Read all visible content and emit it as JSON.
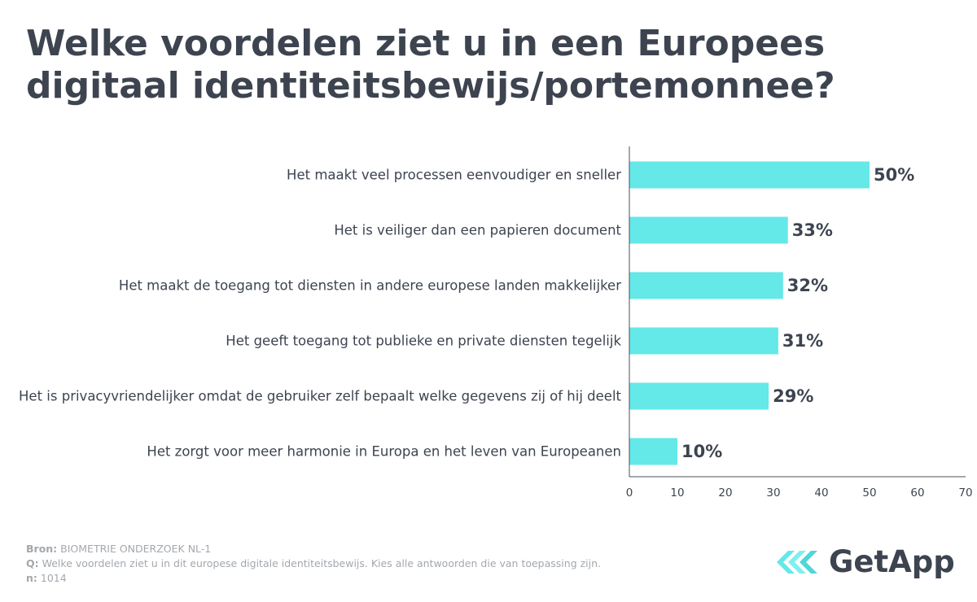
{
  "title": "Welke voordelen ziet u in een Europees digitaal identiteitsbewijs/portemonnee?",
  "colors": {
    "bar": "#64e8e8",
    "text": "#3d4450",
    "axis": "#4a4f57",
    "footer": "#a3a8ae",
    "logo_accent": "#64e8e8"
  },
  "chart_data": {
    "type": "bar",
    "orientation": "horizontal",
    "categories": [
      "Het maakt veel processen eenvoudiger en sneller",
      "Het is veiliger dan een papieren document",
      "Het maakt de toegang tot diensten in andere europese landen makkelijker",
      "Het geeft toegang tot publieke en private diensten tegelijk",
      "Het is privacyvriendelijker omdat de gebruiker zelf bepaalt welke gegevens zij of hij deelt",
      "Het zorgt voor meer harmonie in Europa en het leven van Europeanen"
    ],
    "values": [
      50,
      33,
      32,
      31,
      29,
      10
    ],
    "value_labels": [
      "50%",
      "33%",
      "32%",
      "31%",
      "29%",
      "10%"
    ],
    "xlim": [
      0,
      70
    ],
    "xticks": [
      "0",
      "10",
      "20",
      "30",
      "40",
      "50",
      "60",
      "70"
    ],
    "grid": false,
    "legend": "none"
  },
  "footer": {
    "source_label": "Bron:",
    "source_value": "BIOMETRIE ONDERZOEK NL-1",
    "question_label": "Q:",
    "question_value": "Welke voordelen ziet u in dit europese digitale identiteitsbewijs. Kies alle antwoorden die van toepassing zijn.",
    "n_label": "n:",
    "n_value": "1014"
  },
  "logo": {
    "text": "GetApp",
    "icon": "getapp-chevrons-icon"
  }
}
